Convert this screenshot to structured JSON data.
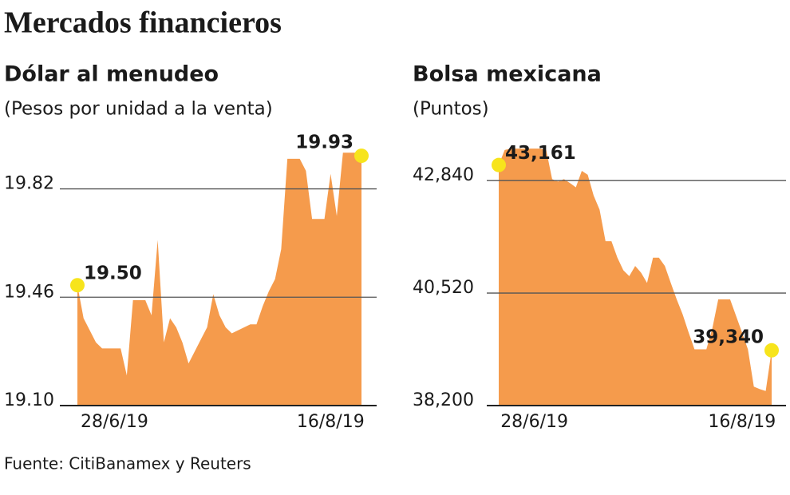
{
  "title": "Mercados financieros",
  "source": "Fuente: CitiBanamex y Reuters",
  "chart_data": [
    {
      "type": "area",
      "title": "Dólar al menudeo",
      "subtitle": "(Pesos por unidad a la venta)",
      "categories": [
        null,
        null,
        null,
        null,
        null,
        null,
        "28/6/19",
        null,
        null,
        null,
        null,
        null,
        null,
        null,
        null,
        null,
        null,
        null,
        null,
        null,
        null,
        null,
        null,
        null,
        null,
        null,
        null,
        null,
        null,
        null,
        null,
        null,
        null,
        null,
        null,
        null,
        null,
        null,
        null,
        null,
        null,
        "16/8/19",
        null,
        null,
        null,
        null,
        null
      ],
      "values": [
        19.5,
        19.39,
        19.35,
        19.31,
        19.29,
        19.29,
        19.29,
        19.29,
        19.2,
        19.45,
        19.45,
        19.45,
        19.4,
        19.65,
        19.31,
        19.39,
        19.36,
        19.31,
        19.24,
        19.28,
        19.32,
        19.36,
        19.47,
        19.4,
        19.36,
        19.34,
        19.35,
        19.36,
        19.37,
        19.37,
        19.43,
        19.48,
        19.52,
        19.62,
        19.92,
        19.92,
        19.92,
        19.88,
        19.72,
        19.72,
        19.72,
        19.87,
        19.73,
        19.94,
        19.94,
        19.94,
        19.93
      ],
      "value_labels": [
        "19.50",
        null,
        null,
        null,
        null,
        null,
        null,
        null,
        null,
        null,
        null,
        null,
        null,
        null,
        null,
        null,
        null,
        null,
        null,
        null,
        null,
        null,
        null,
        null,
        null,
        null,
        null,
        null,
        null,
        null,
        null,
        null,
        null,
        null,
        null,
        null,
        null,
        null,
        null,
        null,
        null,
        null,
        null,
        null,
        null,
        null,
        "19.93"
      ],
      "color": "#f59b4c",
      "highlight_color": "#f7e41c",
      "ylim": [
        19.1,
        19.97
      ],
      "yticks": [
        {
          "value": 19.1,
          "label": "19.10"
        },
        19.46,
        19.82
      ],
      "grid": true
    },
    {
      "type": "area",
      "title": "Bolsa mexicana",
      "subtitle": "(Puntos)",
      "categories": [
        null,
        null,
        null,
        null,
        null,
        null,
        "28/6/19",
        null,
        null,
        null,
        null,
        null,
        null,
        null,
        null,
        null,
        null,
        null,
        null,
        null,
        null,
        null,
        null,
        null,
        null,
        null,
        null,
        null,
        null,
        null,
        null,
        null,
        null,
        null,
        null,
        null,
        null,
        null,
        null,
        null,
        null,
        "16/8/19",
        null,
        null,
        null,
        null,
        null
      ],
      "values": [
        43161,
        43470,
        43500,
        43500,
        43500,
        43500,
        43500,
        43500,
        43470,
        42870,
        42820,
        42870,
        42790,
        42700,
        43040,
        42960,
        42530,
        42240,
        41590,
        41590,
        41250,
        40990,
        40870,
        41080,
        40940,
        40730,
        41250,
        41250,
        41080,
        40730,
        40390,
        40080,
        39710,
        39360,
        39360,
        39360,
        39790,
        40390,
        40390,
        40390,
        40050,
        39710,
        39360,
        38590,
        38540,
        38500,
        39340
      ],
      "value_labels": [
        "43,161",
        null,
        null,
        null,
        null,
        null,
        null,
        null,
        null,
        null,
        null,
        null,
        null,
        null,
        null,
        null,
        null,
        null,
        null,
        null,
        null,
        null,
        null,
        null,
        null,
        null,
        null,
        null,
        null,
        null,
        null,
        null,
        null,
        null,
        null,
        null,
        null,
        null,
        null,
        null,
        null,
        null,
        null,
        null,
        null,
        null,
        "39,340"
      ],
      "color": "#f59b4c",
      "highlight_color": "#f7e41c",
      "ylim": [
        38200,
        43600
      ],
      "yticks": [
        {
          "value": 38200,
          "label": "38,200"
        },
        {
          "value": 40520,
          "label": "40,520"
        },
        {
          "value": 42840,
          "label": "42,840"
        }
      ],
      "grid": true
    }
  ]
}
